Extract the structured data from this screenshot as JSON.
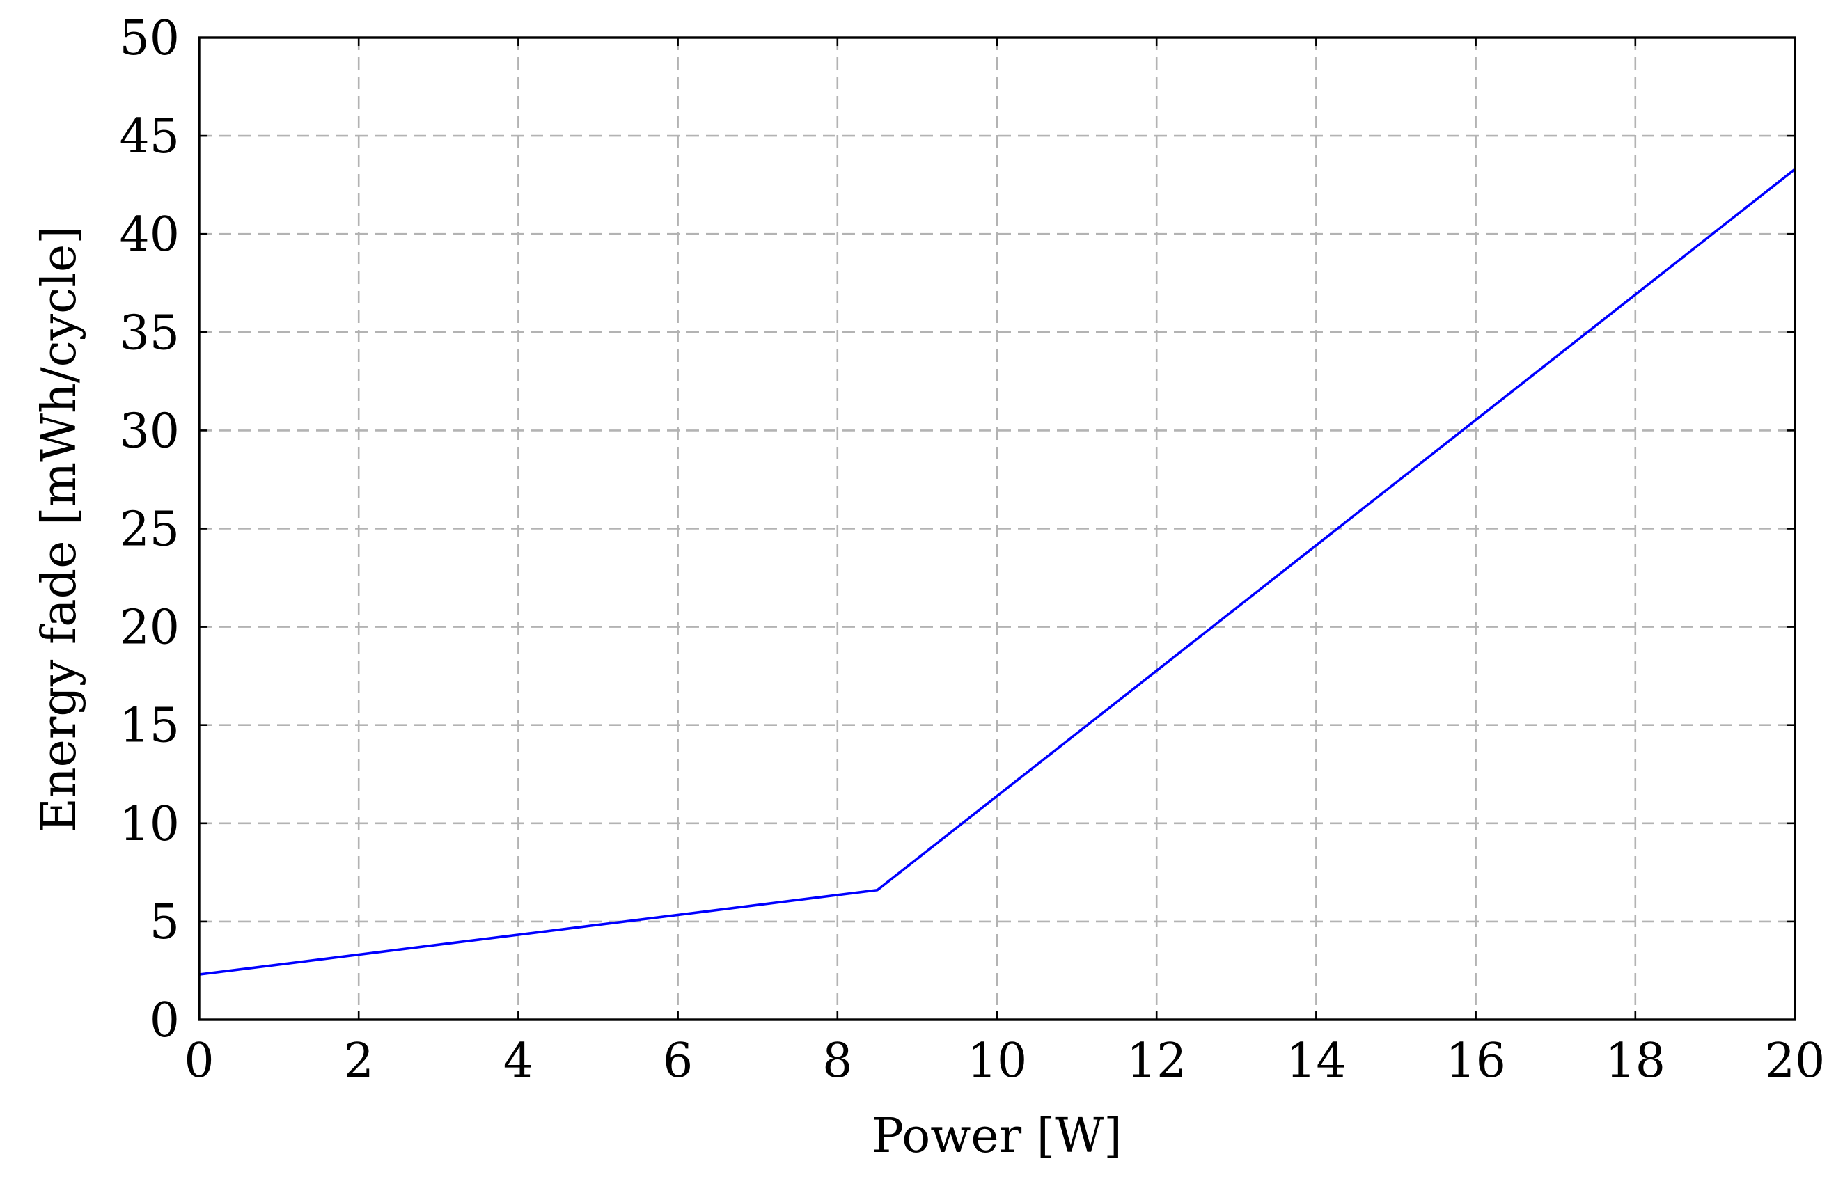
{
  "chart_data": {
    "type": "line",
    "xlabel": "Power [W]",
    "ylabel": "Energy fade [mWh/cycle]",
    "xlim": [
      0,
      20
    ],
    "ylim": [
      0,
      50
    ],
    "xticks": [
      0,
      2,
      4,
      6,
      8,
      10,
      12,
      14,
      16,
      18,
      20
    ],
    "yticks": [
      0,
      5,
      10,
      15,
      20,
      25,
      30,
      35,
      40,
      45,
      50
    ],
    "grid": true,
    "series": [
      {
        "x": [
          0,
          8.5,
          20
        ],
        "y": [
          2.3,
          6.6,
          43.3
        ],
        "color": "#0000ff"
      }
    ]
  }
}
